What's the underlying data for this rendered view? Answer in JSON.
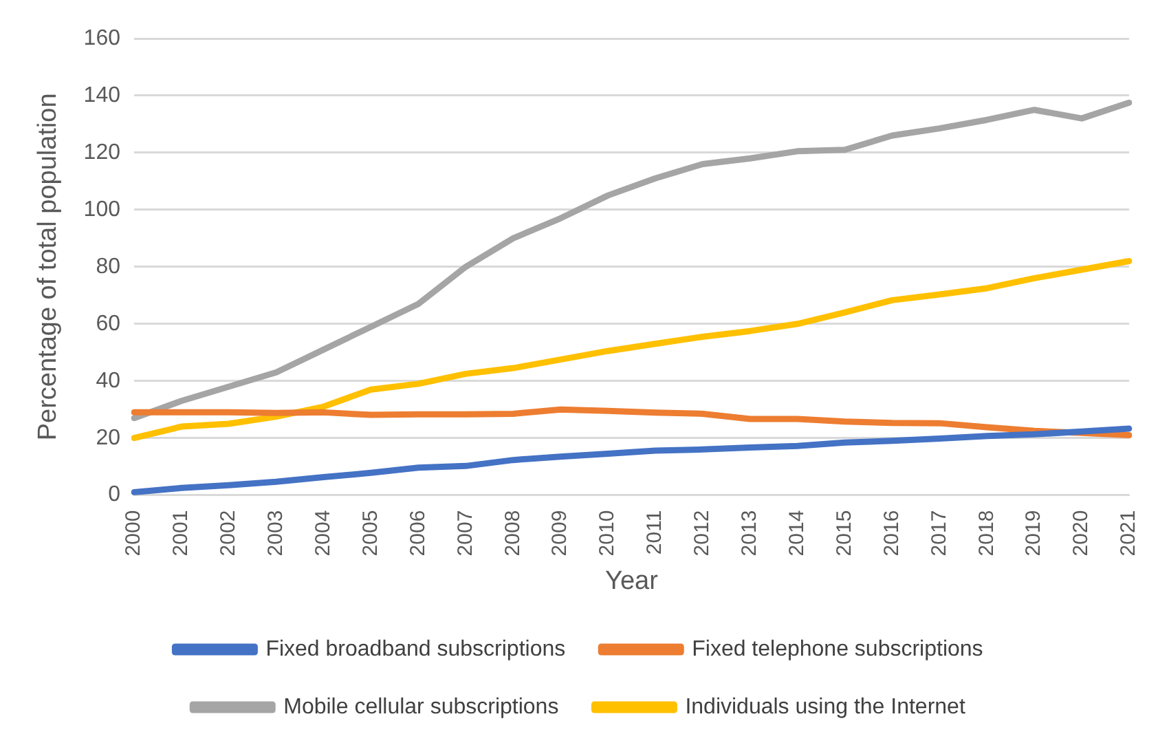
{
  "chart_data": {
    "type": "line",
    "xlabel": "Year",
    "ylabel": "Percentage of total population",
    "categories": [
      "2000",
      "2001",
      "2002",
      "2003",
      "2004",
      "2005",
      "2006",
      "2007",
      "2008",
      "2009",
      "2010",
      "2011",
      "2012",
      "2013",
      "2014",
      "2015",
      "2016",
      "2017",
      "2018",
      "2019",
      "2020",
      "2021"
    ],
    "series": [
      {
        "name": "Fixed broadband subscriptions",
        "color": "#4472c4",
        "values": [
          1,
          2.5,
          3.5,
          4.7,
          6.3,
          7.8,
          9.6,
          10.2,
          12.3,
          13.5,
          14.5,
          15.6,
          16,
          16.7,
          17.2,
          18.4,
          19,
          19.8,
          20.7,
          21.3,
          22.3,
          23.3
        ]
      },
      {
        "name": "Fixed telephone subscriptions",
        "color": "#ed7d31",
        "values": [
          29,
          29,
          29,
          28.8,
          29,
          28.1,
          28.3,
          28.3,
          28.5,
          30,
          29.5,
          28.9,
          28.5,
          26.7,
          26.7,
          25.8,
          25.3,
          25.2,
          23.8,
          22.5,
          21.8,
          21
        ]
      },
      {
        "name": "Mobile cellular subscriptions",
        "color": "#a5a5a5",
        "values": [
          27,
          33,
          38,
          43,
          51,
          59,
          67,
          80,
          90,
          97,
          105,
          111,
          116,
          118,
          120.5,
          121,
          126,
          128.5,
          131.5,
          135,
          132,
          137.5
        ]
      },
      {
        "name": "Individuals using the Internet",
        "color": "#ffc000",
        "values": [
          20,
          24,
          25,
          27.5,
          31,
          37,
          39,
          42.5,
          44.5,
          47.5,
          50.5,
          53,
          55.5,
          57.5,
          60,
          64,
          68.3,
          70.3,
          72.5,
          76,
          79,
          82
        ]
      }
    ],
    "ylim": [
      0,
      160
    ],
    "yticks": [
      0,
      20,
      40,
      60,
      80,
      100,
      120,
      140,
      160
    ],
    "grid": "y",
    "legend": "bottom",
    "marker": "none",
    "line_style": "solid"
  }
}
